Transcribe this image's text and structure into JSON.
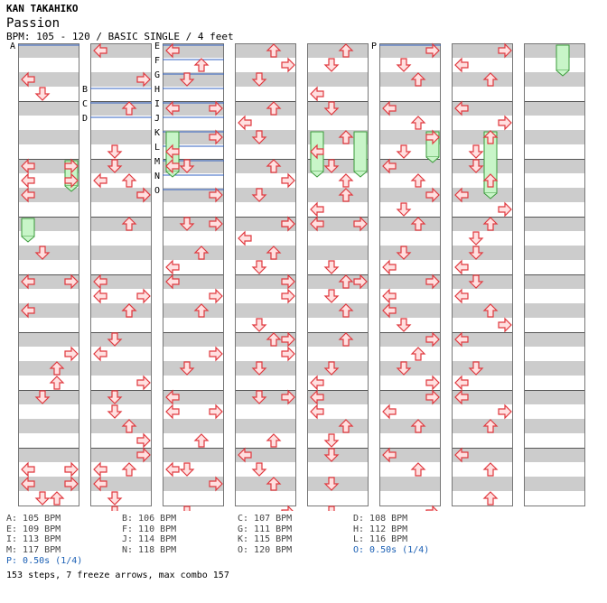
{
  "artist": "KAN TAKAHIKO",
  "title": "Passion",
  "meta": "BPM: 105 - 120 / BASIC SINGLE / 4 feet",
  "colors": {
    "arrow_fill": "#ffe0e0",
    "arrow_stroke": "#e0383e",
    "freeze_fill": "#c8f5c8",
    "freeze_stroke": "#3a9a3a",
    "stripe": "#cccccc",
    "marker_line": "#3060c0",
    "stop_text": "#1a5fb4"
  },
  "columns": [
    {
      "rows": [
        [
          [
            2,
            0
          ],
          [
            3,
            1
          ]
        ],
        [
          [
            4,
            0
          ],
          [
            5,
            3
          ],
          [
            6,
            0
          ]
        ],
        [
          [
            0,
            3
          ],
          [
            1,
            0
          ]
        ],
        [
          [
            2,
            1
          ],
          [
            4,
            3
          ],
          [
            6,
            0
          ]
        ],
        [
          [
            0,
            0
          ],
          [
            5,
            3
          ],
          [
            6,
            2
          ]
        ],
        [
          [
            3,
            2
          ],
          [
            4,
            1
          ]
        ],
        [
          [
            5,
            3
          ],
          [
            6,
            0
          ],
          [
            7,
            1
          ]
        ],
        [
          [
            1,
            0
          ],
          [
            2,
            3
          ],
          [
            3,
            2
          ]
        ]
      ],
      "freezes": [
        [
          8.0,
          3,
          2.0
        ],
        [
          12.0,
          0,
          1.5
        ]
      ],
      "markers": [
        [
          "A",
          -0.5
        ]
      ]
    },
    {
      "rows": [
        [
          [
            0,
            0
          ],
          [
            2,
            3
          ],
          [
            4,
            2
          ]
        ],
        [
          [
            3,
            1
          ],
          [
            5,
            0
          ],
          [
            6,
            3
          ]
        ],
        [
          [
            0,
            1
          ],
          [
            1,
            2
          ],
          [
            2,
            3
          ],
          [
            4,
            2
          ]
        ],
        [
          [
            4,
            0
          ],
          [
            5,
            3
          ],
          [
            6,
            2
          ]
        ],
        [
          [
            1,
            0
          ],
          [
            2,
            2
          ],
          [
            4,
            1
          ]
        ],
        [
          [
            1,
            0
          ],
          [
            3,
            3
          ],
          [
            5,
            1
          ]
        ],
        [
          [
            0,
            1
          ],
          [
            2,
            2
          ],
          [
            3,
            3
          ],
          [
            5,
            0
          ]
        ],
        [
          [
            0,
            3
          ],
          [
            1,
            2
          ],
          [
            2,
            0
          ],
          [
            3,
            1
          ],
          [
            4,
            1
          ]
        ]
      ],
      "freezes": [],
      "markers": [
        [
          "B",
          2.5
        ],
        [
          "C",
          3.5
        ],
        [
          "D",
          4.5
        ]
      ]
    },
    {
      "rows": [
        [
          [
            0,
            0
          ],
          [
            1,
            2
          ],
          [
            2,
            1
          ],
          [
            4,
            3
          ]
        ],
        [
          [
            0,
            0
          ],
          [
            2,
            3
          ],
          [
            3,
            0
          ],
          [
            4,
            1
          ]
        ],
        [
          [
            0,
            0
          ],
          [
            2,
            3
          ],
          [
            4,
            1
          ]
        ],
        [
          [
            0,
            3
          ],
          [
            2,
            2
          ],
          [
            3,
            0
          ],
          [
            5,
            3
          ]
        ],
        [
          [
            0,
            0
          ],
          [
            2,
            2
          ],
          [
            5,
            3
          ]
        ],
        [
          [
            2,
            1
          ],
          [
            4,
            0
          ],
          [
            5,
            3
          ]
        ],
        [
          [
            1,
            0
          ],
          [
            3,
            2
          ],
          [
            5,
            1
          ]
        ],
        [
          [
            1,
            0
          ],
          [
            2,
            3
          ],
          [
            4,
            1
          ],
          [
            6,
            3
          ]
        ]
      ],
      "freezes": [
        [
          6.0,
          0,
          3.0
        ]
      ],
      "markers": [
        [
          "E",
          -0.5
        ],
        [
          "F",
          0.5
        ],
        [
          "G",
          1.5
        ],
        [
          "H",
          2.5
        ],
        [
          "I",
          3.5
        ],
        [
          "J",
          4.5
        ],
        [
          "K",
          5.5
        ],
        [
          "L",
          6.5
        ],
        [
          "M",
          7.5
        ],
        [
          "N",
          8.5
        ],
        [
          "O",
          9.5
        ]
      ]
    },
    {
      "rows": [
        [
          [
            0,
            2
          ],
          [
            1,
            3
          ],
          [
            2,
            1
          ]
        ],
        [
          [
            0,
            2
          ],
          [
            1,
            0
          ],
          [
            2,
            1
          ]
        ],
        [
          [
            0,
            2
          ],
          [
            1,
            3
          ],
          [
            2,
            1
          ],
          [
            4,
            3
          ]
        ],
        [
          [
            0,
            3
          ],
          [
            1,
            0
          ],
          [
            2,
            2
          ],
          [
            3,
            1
          ]
        ],
        [
          [
            0,
            3
          ],
          [
            1,
            3
          ],
          [
            3,
            1
          ],
          [
            4,
            3
          ]
        ],
        [
          [
            0,
            2
          ],
          [
            1,
            3
          ],
          [
            2,
            1
          ],
          [
            4,
            3
          ]
        ],
        [
          [
            0,
            1
          ],
          [
            3,
            2
          ],
          [
            5,
            1
          ]
        ],
        [
          [
            0,
            0
          ],
          [
            2,
            2
          ],
          [
            4,
            3
          ]
        ]
      ],
      "freezes": [],
      "markers": []
    },
    {
      "rows": [
        [
          [
            0,
            2
          ],
          [
            1,
            1
          ],
          [
            3,
            0
          ]
        ],
        [
          [
            0,
            1
          ],
          [
            2,
            2
          ],
          [
            3,
            0
          ]
        ],
        [
          [
            0,
            1
          ],
          [
            1,
            2
          ],
          [
            2,
            2
          ],
          [
            3,
            0
          ],
          [
            4,
            3
          ]
        ],
        [
          [
            0,
            0
          ],
          [
            4,
            3
          ],
          [
            3,
            1
          ]
        ],
        [
          [
            0,
            2
          ],
          [
            1,
            1
          ],
          [
            2,
            2
          ]
        ],
        [
          [
            0,
            2
          ],
          [
            2,
            1
          ],
          [
            3,
            0
          ]
        ],
        [
          [
            0,
            0
          ],
          [
            1,
            0
          ],
          [
            2,
            2
          ],
          [
            3,
            1
          ]
        ],
        [
          [
            0,
            1
          ],
          [
            2,
            1
          ],
          [
            4,
            1
          ]
        ]
      ],
      "freezes": [
        [
          6.0,
          0,
          3.0
        ],
        [
          6.0,
          3,
          3.0
        ]
      ],
      "markers": []
    },
    {
      "rows": [
        [
          [
            0,
            3
          ],
          [
            1,
            1
          ],
          [
            2,
            2
          ]
        ],
        [
          [
            0,
            0
          ],
          [
            1,
            2
          ],
          [
            2,
            3
          ],
          [
            3,
            1
          ]
        ],
        [
          [
            0,
            0
          ],
          [
            1,
            2
          ],
          [
            2,
            3
          ],
          [
            3,
            1
          ]
        ],
        [
          [
            0,
            2
          ],
          [
            2,
            1
          ],
          [
            3,
            0
          ]
        ],
        [
          [
            0,
            3
          ],
          [
            1,
            0
          ],
          [
            2,
            0
          ],
          [
            3,
            1
          ]
        ],
        [
          [
            0,
            3
          ],
          [
            1,
            2
          ],
          [
            2,
            1
          ],
          [
            3,
            3
          ]
        ],
        [
          [
            0,
            3
          ],
          [
            1,
            0
          ],
          [
            2,
            2
          ]
        ],
        [
          [
            0,
            0
          ],
          [
            1,
            2
          ],
          [
            4,
            3
          ]
        ]
      ],
      "freezes": [
        [
          6.0,
          3,
          2.0
        ]
      ],
      "markers": [
        [
          "P",
          -0.5
        ]
      ]
    },
    {
      "rows": [
        [
          [
            0,
            3
          ],
          [
            1,
            0
          ],
          [
            2,
            2
          ]
        ],
        [
          [
            0,
            0
          ],
          [
            1,
            3
          ],
          [
            2,
            2
          ],
          [
            3,
            1
          ]
        ],
        [
          [
            0,
            1
          ],
          [
            1,
            2
          ],
          [
            2,
            0
          ],
          [
            3,
            3
          ]
        ],
        [
          [
            0,
            2
          ],
          [
            1,
            1
          ],
          [
            2,
            1
          ],
          [
            3,
            0
          ]
        ],
        [
          [
            0,
            1
          ],
          [
            1,
            0
          ],
          [
            2,
            2
          ],
          [
            3,
            3
          ]
        ],
        [
          [
            0,
            0
          ],
          [
            2,
            1
          ],
          [
            3,
            0
          ]
        ],
        [
          [
            0,
            0
          ],
          [
            1,
            3
          ],
          [
            2,
            2
          ]
        ],
        [
          [
            0,
            0
          ],
          [
            1,
            2
          ],
          [
            3,
            2
          ]
        ]
      ],
      "freezes": [
        [
          6.0,
          2,
          4.5
        ]
      ],
      "markers": []
    },
    {
      "rows": [
        [],
        [],
        [],
        [],
        [],
        [],
        [],
        []
      ],
      "freezes": [
        [
          0.0,
          2,
          2.0
        ]
      ],
      "markers": []
    }
  ],
  "legend": [
    [
      {
        "label": "A: 105 BPM"
      },
      {
        "label": "B: 106 BPM"
      },
      {
        "label": "C: 107 BPM"
      },
      {
        "label": "D: 108 BPM"
      }
    ],
    [
      {
        "label": "E: 109 BPM"
      },
      {
        "label": "F: 110 BPM"
      },
      {
        "label": "G: 111 BPM"
      },
      {
        "label": "H: 112 BPM"
      }
    ],
    [
      {
        "label": "I: 113 BPM"
      },
      {
        "label": "J: 114 BPM"
      },
      {
        "label": "K: 115 BPM"
      },
      {
        "label": "L: 116 BPM"
      }
    ],
    [
      {
        "label": "M: 117 BPM"
      },
      {
        "label": "N: 118 BPM"
      },
      {
        "label": "O: 120 BPM"
      },
      {
        "label": "O: 0.50s (1/4)",
        "stop": true
      }
    ],
    [
      {
        "label": "P: 0.50s (1/4)",
        "stop": true
      }
    ]
  ],
  "summary": "153 steps, 7 freeze arrows, max combo 157"
}
